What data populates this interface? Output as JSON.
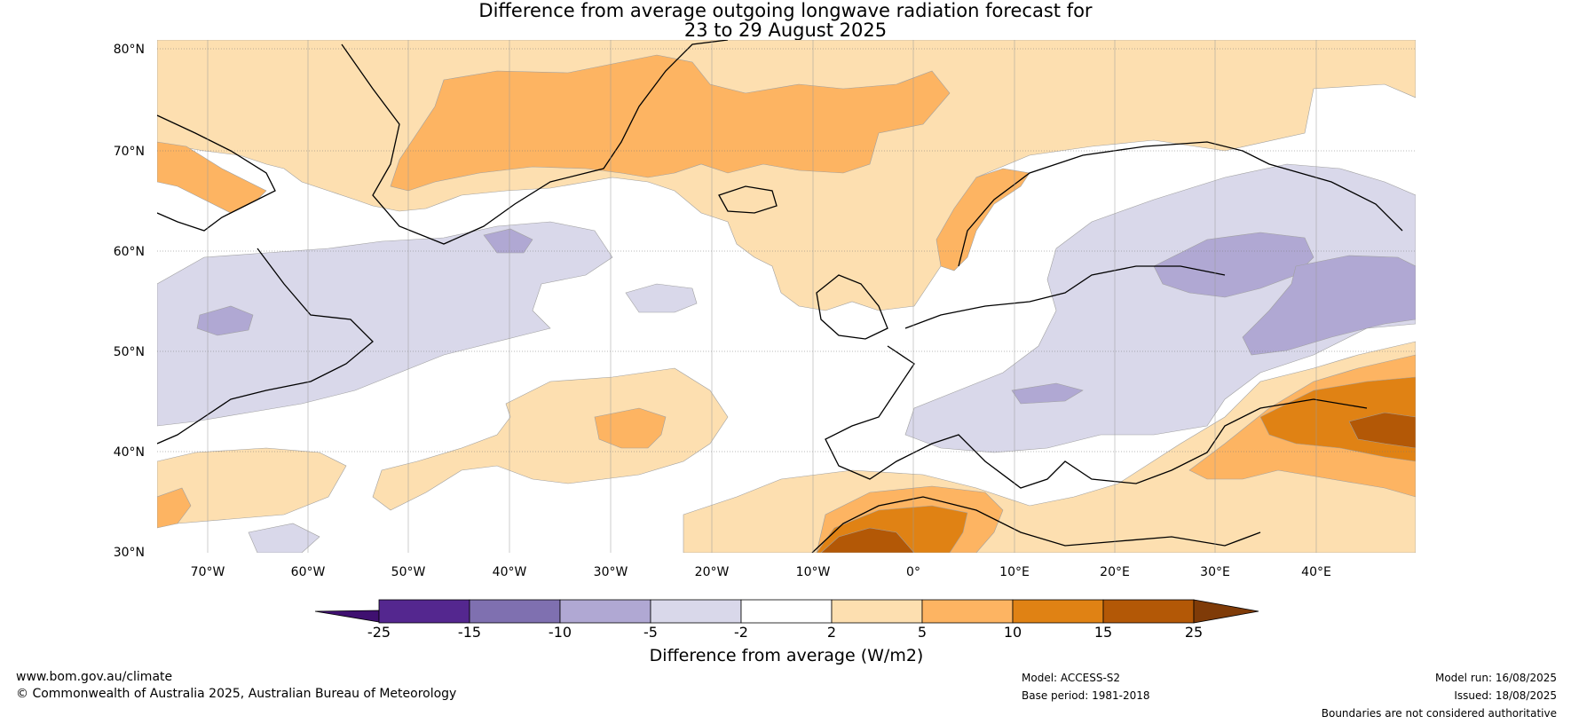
{
  "title": {
    "line1": "Difference from average outgoing longwave radiation forecast for",
    "line2": "23 to 29 August 2025"
  },
  "map": {
    "lat_labels": [
      "80°N",
      "70°N",
      "60°N",
      "50°N",
      "40°N",
      "30°N"
    ],
    "lon_labels": [
      "70°W",
      "60°W",
      "50°W",
      "40°W",
      "30°W",
      "20°W",
      "10°W",
      "0°",
      "10°E",
      "20°E",
      "30°E",
      "40°E"
    ]
  },
  "colorbar": {
    "title": "Difference from average (W/m2)",
    "tick_labels": [
      "-25",
      "-15",
      "-10",
      "-5",
      "-2",
      "2",
      "5",
      "10",
      "15",
      "25"
    ],
    "colors": [
      "#3f1070",
      "#54278f",
      "#7f70b0",
      "#b0a8d3",
      "#d9d8ea",
      "#ffffff",
      "#fddfb0",
      "#fdb462",
      "#e08214",
      "#b35806",
      "#7f3b08"
    ]
  },
  "footer": {
    "website": "www.bom.gov.au/climate",
    "copyright": "© Commonwealth of Australia 2025, Australian Bureau of Meteorology",
    "model": "Model: ACCESS-S2",
    "base_period": "Base period: 1981-2018",
    "model_run": "Model run: 16/08/2025",
    "issued": "Issued: 18/08/2025",
    "disclaimer": "Boundaries are not considered authoritative"
  }
}
